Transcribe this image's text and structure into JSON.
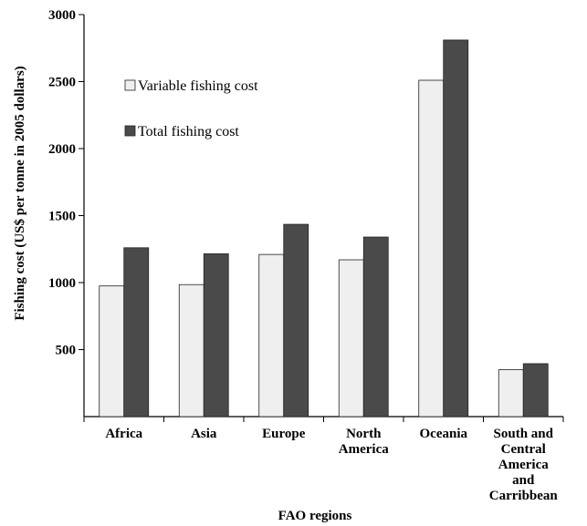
{
  "chart_data": {
    "type": "bar",
    "title": "",
    "xlabel": "FAO regions",
    "ylabel": "Fishing cost (US$ per tonne in 2005 dollars)",
    "categories": [
      [
        "Africa"
      ],
      [
        "Asia"
      ],
      [
        "Europe"
      ],
      [
        "North",
        "America"
      ],
      [
        "Oceania"
      ],
      [
        "South and",
        "Central",
        "America",
        "and",
        "Carribbean"
      ]
    ],
    "series": [
      {
        "name": "Variable fishing cost",
        "color": "#efefef",
        "values": [
          975,
          985,
          1210,
          1170,
          2510,
          350
        ]
      },
      {
        "name": "Total fishing cost",
        "color": "#4a4a4a",
        "values": [
          1260,
          1215,
          1435,
          1340,
          2810,
          395
        ]
      }
    ],
    "yticks": [
      500,
      1000,
      1500,
      2000,
      2500,
      3000
    ],
    "ylim": [
      0,
      3000
    ],
    "grid": false,
    "legend": "upper-left"
  }
}
